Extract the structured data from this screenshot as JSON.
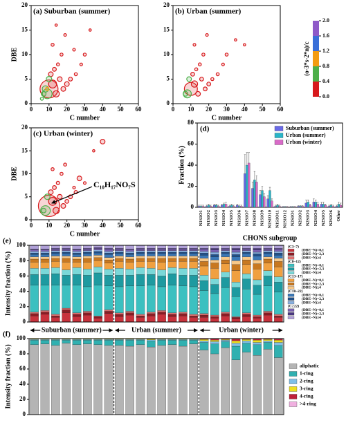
{
  "chart_data": [
    {
      "type": "scatter",
      "title": "(a) Suburban (summer)",
      "xlabel": "C number",
      "ylabel": "DBE",
      "xlim": [
        0,
        60
      ],
      "ylim": [
        0,
        20
      ],
      "xticks": [
        0,
        10,
        20,
        30,
        40,
        50,
        60
      ],
      "yticks": [
        0,
        5,
        10,
        15,
        20
      ],
      "x": [
        10,
        9,
        12,
        8,
        14,
        16,
        11,
        18,
        20,
        7,
        13,
        22,
        15,
        6,
        25,
        17,
        12,
        30,
        19,
        10,
        28,
        24,
        14,
        33,
        9
      ],
      "y": [
        3,
        2,
        4,
        3,
        2,
        5,
        6,
        3,
        4,
        2,
        7,
        5,
        8,
        1,
        6,
        10,
        12,
        10,
        14,
        5,
        8,
        11,
        16,
        15,
        3
      ],
      "sizes": [
        10,
        5,
        4,
        3,
        3,
        2,
        2,
        2,
        2,
        2,
        1.5,
        1.5,
        1,
        1,
        1,
        1,
        1,
        1,
        0.8,
        2.5,
        0.8,
        0.8,
        0.6,
        0.6,
        1.2
      ],
      "ratio": [
        0.1,
        0.5,
        0.2,
        0.6,
        0.3,
        0.2,
        0.1,
        0.3,
        0.2,
        0.5,
        0.1,
        0.2,
        0.1,
        0.6,
        0.2,
        0.1,
        0.1,
        0.2,
        0.1,
        0.5,
        0.3,
        0.1,
        0.2,
        0.1,
        0.9
      ]
    },
    {
      "type": "scatter",
      "title": "(b) Urban (summer)",
      "xlabel": "C number",
      "xlim": [
        0,
        60
      ],
      "ylim": [
        0,
        20
      ],
      "xticks": [
        0,
        10,
        20,
        30,
        40,
        50,
        60
      ],
      "yticks": [
        0,
        5,
        10,
        15,
        20
      ],
      "x": [
        10,
        8,
        12,
        14,
        7,
        16,
        11,
        18,
        20,
        13,
        22,
        15,
        25,
        17,
        30,
        19,
        12,
        28,
        35,
        9,
        40
      ],
      "y": [
        3,
        2,
        4,
        2,
        2,
        5,
        6,
        3,
        4,
        7,
        5,
        8,
        6,
        10,
        10,
        14,
        12,
        8,
        13,
        5,
        12
      ],
      "sizes": [
        7,
        4,
        3,
        2,
        2,
        1.5,
        1.5,
        1.5,
        1.5,
        1,
        1,
        1,
        1,
        1,
        1,
        0.8,
        0.8,
        0.8,
        0.6,
        2,
        0.6
      ],
      "ratio": [
        0.1,
        0.5,
        0.2,
        0.3,
        0.6,
        0.2,
        0.1,
        0.3,
        0.2,
        0.1,
        0.2,
        0.1,
        0.2,
        0.1,
        0.2,
        0.1,
        0.1,
        0.3,
        0.1,
        0.5,
        0.2
      ]
    },
    {
      "type": "scatter",
      "title": "(c) Urban (winter)",
      "xlabel": "C number",
      "ylabel": "DBE",
      "annotation": "C₁₀H₁₇NO₇S",
      "xlim": [
        0,
        60
      ],
      "ylim": [
        0,
        20
      ],
      "xticks": [
        0,
        10,
        20,
        30,
        40,
        50,
        60
      ],
      "yticks": [
        0,
        5,
        10,
        15,
        20
      ],
      "x": [
        10,
        8,
        12,
        14,
        7,
        16,
        11,
        18,
        20,
        13,
        22,
        15,
        25,
        17,
        27,
        19,
        12,
        30,
        40,
        9,
        24,
        35
      ],
      "y": [
        3,
        2,
        4,
        2,
        2,
        5,
        6,
        3,
        4,
        7,
        5,
        8,
        6,
        10,
        9,
        12,
        11,
        8,
        17,
        5,
        7,
        15
      ],
      "sizes": [
        12,
        5,
        4,
        3,
        2,
        2,
        2,
        2,
        1.5,
        1.5,
        1.5,
        1.2,
        1.2,
        1,
        2,
        1,
        1,
        0.8,
        2,
        2.5,
        0.8,
        0.6
      ],
      "ratio": [
        0.1,
        0.5,
        0.2,
        0.3,
        0.6,
        0.1,
        0.1,
        0.2,
        0.2,
        0.1,
        0.2,
        0.1,
        0.2,
        0.1,
        0.1,
        0.1,
        0.1,
        0.2,
        0.2,
        0.5,
        0.1,
        0.1
      ]
    },
    {
      "type": "colorbar",
      "title": "(o-3*s-2*n)/c",
      "ticks": [
        {
          "value": 0,
          "label": "0.0"
        },
        {
          "value": 0.4,
          "label": "0.4"
        },
        {
          "value": 0.8,
          "label": "0.8"
        },
        {
          "value": 1.2,
          "label": "1.2"
        },
        {
          "value": 1.6,
          "label": "1.6"
        },
        {
          "value": 2,
          "label": "2.0"
        }
      ],
      "colors": [
        "#d7191c",
        "#4daf4a",
        "#f39c12",
        "#3a6fd8",
        "#8e5ac8"
      ]
    },
    {
      "type": "bar",
      "title": "(d)",
      "xlabel": "CHONS subgroup",
      "ylabel": "Fraction (%)",
      "ylim": [
        0,
        80
      ],
      "yticks": [
        0,
        20,
        40,
        60,
        80
      ],
      "categories": [
        "N1S1O1",
        "N1S1O2",
        "N1S1O3",
        "N1S1O4",
        "N1S1O5",
        "N1S1O6",
        "N1S1O7",
        "N1S1O8",
        "N1S1O9",
        "N1S1O10",
        "N1S1O11",
        "N1S1O12",
        "N2S1O1",
        "N2S1O2",
        "N2S1O3",
        "N2S1O4",
        "N2S1O5",
        "N2S1O6",
        "Other"
      ],
      "series": [
        {
          "name": "Suburban (summer)",
          "color": "#6a6ae8",
          "values": [
            1,
            1,
            2,
            2,
            1,
            2,
            32,
            18,
            12,
            8,
            1,
            0.5,
            0.5,
            1,
            4,
            5,
            3,
            1,
            1
          ],
          "errors": [
            1,
            1,
            1,
            1,
            1,
            1,
            18,
            6,
            4,
            3,
            1,
            0.3,
            0.3,
            0.5,
            3,
            3,
            2,
            1,
            1
          ]
        },
        {
          "name": "Urban (summer)",
          "color": "#2ab5c8",
          "values": [
            1,
            2,
            2,
            3,
            2,
            1,
            40,
            26,
            16,
            16,
            2,
            0.5,
            0.5,
            1,
            5,
            5,
            3,
            2,
            3
          ],
          "errors": [
            1,
            1,
            1,
            1,
            1,
            1,
            12,
            8,
            4,
            3,
            1,
            0.3,
            0.3,
            0.5,
            2,
            2,
            2,
            1,
            2
          ]
        },
        {
          "name": "Urban (winter)",
          "color": "#d96ac8",
          "values": [
            1,
            1,
            1,
            3,
            1,
            1,
            42,
            24,
            10,
            6,
            1,
            0.5,
            0.5,
            1,
            2,
            3,
            2,
            1,
            2
          ],
          "errors": [
            1,
            1,
            1,
            2,
            1,
            1,
            10,
            6,
            3,
            2,
            1,
            0.3,
            0.3,
            0.5,
            1,
            2,
            1,
            1,
            2
          ]
        }
      ]
    },
    {
      "type": "stacked_bar",
      "title": "(e)",
      "ylabel": "Intensity fraction (%)",
      "ylim": [
        0,
        100
      ],
      "yticks": [
        0,
        20,
        40,
        60,
        80,
        100
      ],
      "groups": [
        {
          "label": "Suburban (summer)",
          "categories": [
            null,
            null,
            null,
            null,
            null,
            null,
            null,
            null
          ]
        },
        {
          "label": "Urban (summer)",
          "categories": [
            null,
            null,
            null,
            null,
            null,
            null,
            null,
            null
          ]
        },
        {
          "label": "Urban (winter)",
          "categories": [
            null,
            null,
            null,
            null,
            null,
            null,
            null,
            null
          ]
        }
      ],
      "legend_headers": [
        "(C3~7)",
        "(C8~12)",
        "(C13~17)",
        "(C18~22)",
        "(C≥22)"
      ],
      "series": [
        {
          "name": "(DBE−N)=0,1",
          "color": "#c8323c",
          "values": [
            8,
            10,
            6,
            12,
            7,
            9,
            5,
            11,
            7,
            9,
            6,
            8,
            10,
            7,
            8,
            6,
            6,
            5,
            8,
            4,
            7,
            5,
            9,
            6
          ]
        },
        {
          "name": "(DBE−N)=2,3",
          "color": "#8b1c24",
          "values": [
            3,
            3,
            2,
            4,
            3,
            3,
            2,
            3,
            3,
            3,
            2,
            3,
            3,
            3,
            3,
            2,
            3,
            2,
            3,
            2,
            3,
            2,
            3,
            2
          ]
        },
        {
          "name": "(DBE−N)≥4",
          "color": "#e07070",
          "values": [
            2,
            2,
            2,
            2,
            2,
            2,
            1,
            2,
            2,
            2,
            2,
            2,
            2,
            2,
            2,
            2,
            2,
            2,
            2,
            1,
            2,
            2,
            2,
            2
          ]
        },
        {
          "name": "(DBE−N)=0,1",
          "color": "#3cc0c0",
          "values": [
            35,
            33,
            38,
            30,
            36,
            32,
            40,
            31,
            34,
            33,
            37,
            35,
            31,
            36,
            34,
            36,
            30,
            28,
            32,
            26,
            31,
            27,
            33,
            29
          ]
        },
        {
          "name": "(DBE−N)=2,3",
          "color": "#1e9aa0",
          "values": [
            14,
            14,
            15,
            13,
            14,
            15,
            16,
            14,
            15,
            14,
            15,
            14,
            14,
            15,
            14,
            15,
            13,
            12,
            13,
            12,
            13,
            12,
            13,
            13
          ]
        },
        {
          "name": "(DBE−N)≥4",
          "color": "#7ad8d8",
          "values": [
            8,
            8,
            8,
            7,
            9,
            8,
            8,
            8,
            9,
            8,
            9,
            8,
            8,
            8,
            9,
            9,
            7,
            7,
            7,
            7,
            7,
            7,
            7,
            7
          ]
        },
        {
          "name": "(DBE−N)=0,1",
          "color": "#f0a040",
          "values": [
            8,
            8,
            8,
            10,
            7,
            9,
            8,
            8,
            9,
            9,
            8,
            9,
            10,
            8,
            9,
            9,
            12,
            14,
            11,
            15,
            12,
            14,
            10,
            13
          ]
        },
        {
          "name": "(DBE−N)=2,3",
          "color": "#c87820",
          "values": [
            4,
            4,
            4,
            5,
            4,
            5,
            4,
            4,
            4,
            4,
            4,
            4,
            5,
            4,
            4,
            4,
            6,
            7,
            5,
            8,
            6,
            7,
            5,
            7
          ]
        },
        {
          "name": "(DBE−N)≥4",
          "color": "#f8c888",
          "values": [
            3,
            3,
            3,
            3,
            3,
            3,
            3,
            3,
            3,
            3,
            3,
            3,
            3,
            3,
            3,
            3,
            4,
            4,
            4,
            5,
            4,
            5,
            3,
            4
          ]
        },
        {
          "name": "(DBE−N)=0,1",
          "color": "#3a78b8",
          "values": [
            3,
            3,
            3,
            3,
            3,
            3,
            3,
            4,
            3,
            3,
            3,
            3,
            3,
            3,
            3,
            3,
            4,
            4,
            4,
            5,
            4,
            5,
            4,
            4
          ]
        },
        {
          "name": "(DBE−N)=2,3",
          "color": "#20508a",
          "values": [
            2,
            2,
            2,
            2,
            2,
            2,
            2,
            2,
            2,
            2,
            2,
            2,
            2,
            2,
            2,
            2,
            3,
            3,
            2,
            3,
            2,
            3,
            2,
            3
          ]
        },
        {
          "name": "(DBE−N)≥4",
          "color": "#88b0e0",
          "values": [
            2,
            2,
            2,
            2,
            2,
            2,
            2,
            2,
            2,
            2,
            2,
            2,
            2,
            2,
            2,
            2,
            2,
            3,
            2,
            3,
            2,
            2,
            2,
            2
          ]
        },
        {
          "name": "(DBE−N)=0,1",
          "color": "#7a60b0",
          "values": [
            2,
            2,
            2,
            2,
            2,
            2,
            2,
            3,
            2,
            2,
            2,
            2,
            2,
            2,
            2,
            2,
            3,
            3,
            2,
            3,
            2,
            3,
            2,
            3
          ]
        },
        {
          "name": "(DBE−N)=2,3",
          "color": "#4a3880",
          "values": [
            1,
            1,
            1,
            1,
            1,
            1,
            1,
            1,
            1,
            1,
            1,
            1,
            1,
            1,
            1,
            1,
            1,
            2,
            1,
            2,
            1,
            2,
            1,
            1
          ]
        },
        {
          "name": "(DBE−N)≥4",
          "color": "#b0a0d8",
          "values": [
            5,
            5,
            4,
            4,
            5,
            4,
            3,
            4,
            4,
            5,
            4,
            4,
            4,
            4,
            4,
            4,
            4,
            4,
            4,
            4,
            4,
            4,
            4,
            4
          ]
        }
      ]
    },
    {
      "type": "stacked_bar",
      "title": "(f)",
      "ylabel": "Intensity fraction (%)",
      "ylim": [
        0,
        100
      ],
      "yticks": [
        0,
        20,
        40,
        60,
        80,
        100
      ],
      "series": [
        {
          "name": "aliphatic",
          "color": "#b4b4b4",
          "values": [
            92,
            93,
            91,
            94,
            92,
            93,
            92,
            91,
            91,
            90,
            92,
            89,
            91,
            92,
            90,
            93,
            85,
            80,
            88,
            72,
            82,
            78,
            86,
            75
          ]
        },
        {
          "name": "1-ring",
          "color": "#30b0b0",
          "values": [
            6,
            5,
            7,
            4,
            6,
            5,
            6,
            7,
            7,
            8,
            6,
            8,
            7,
            6,
            8,
            5,
            10,
            13,
            8,
            18,
            12,
            14,
            9,
            16
          ]
        },
        {
          "name": "2-ring",
          "color": "#80c0e8",
          "values": [
            1,
            1,
            1,
            1,
            1,
            1,
            1,
            1,
            1,
            1,
            1,
            1.5,
            1,
            1,
            1,
            1,
            2,
            3,
            2,
            4,
            3,
            3,
            2,
            4
          ]
        },
        {
          "name": "3-ring",
          "color": "#f0e020",
          "values": [
            0.6,
            0.6,
            0.6,
            0.6,
            0.6,
            0.6,
            0.6,
            0.6,
            0.6,
            0.6,
            0.6,
            1,
            0.6,
            0.6,
            0.6,
            0.6,
            2,
            2,
            1,
            3,
            2,
            3,
            2,
            3
          ]
        },
        {
          "name": "4-ring",
          "color": "#c0203a",
          "values": [
            0.2,
            0.2,
            0.2,
            0.2,
            0.2,
            0.2,
            0.2,
            0.2,
            0.2,
            0.2,
            0.2,
            0.3,
            0.2,
            0.2,
            0.2,
            0.2,
            0.6,
            1.5,
            0.6,
            2.5,
            0.6,
            1.5,
            0.6,
            1.5
          ]
        },
        {
          "name": ">4-ring",
          "color": "#f0b0e0",
          "values": [
            0.2,
            0.2,
            0.2,
            0.2,
            0.2,
            0.2,
            0.2,
            0.2,
            0.2,
            0.2,
            0.2,
            0.2,
            0.2,
            0.2,
            0.2,
            0.2,
            0.4,
            0.5,
            0.4,
            0.5,
            0.4,
            0.5,
            0.4,
            0.5
          ]
        }
      ]
    }
  ]
}
